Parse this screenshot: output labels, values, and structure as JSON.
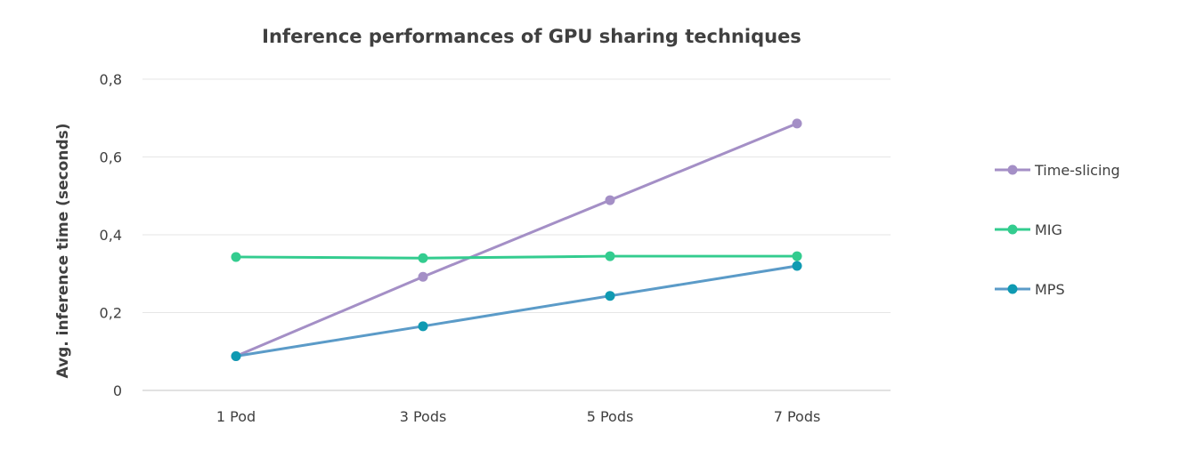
{
  "chart_data": {
    "type": "line",
    "title": "Inference performances of GPU sharing techniques",
    "xlabel": "",
    "ylabel": "Avg. inference time (seconds)",
    "categories": [
      "1 Pod",
      "3 Pods",
      "5 Pods",
      "7 Pods"
    ],
    "ylim": [
      0,
      0.8
    ],
    "yticks": [
      0,
      0.2,
      0.4,
      0.6,
      0.8
    ],
    "ytick_labels": [
      "0",
      "0,2",
      "0,4",
      "0,6",
      "0,8"
    ],
    "grid": true,
    "legend_position": "right",
    "series": [
      {
        "name": "Time-slicing",
        "color": "#a48fc6",
        "values": [
          0.088,
          0.292,
          0.489,
          0.686
        ]
      },
      {
        "name": "MIG",
        "color": "#33cc8f",
        "values": [
          0.343,
          0.34,
          0.345,
          0.345
        ]
      },
      {
        "name": "MPS",
        "color": "#0f9ab2",
        "line_color": "#5b9bc8",
        "values": [
          0.088,
          0.165,
          0.243,
          0.32
        ]
      }
    ]
  }
}
